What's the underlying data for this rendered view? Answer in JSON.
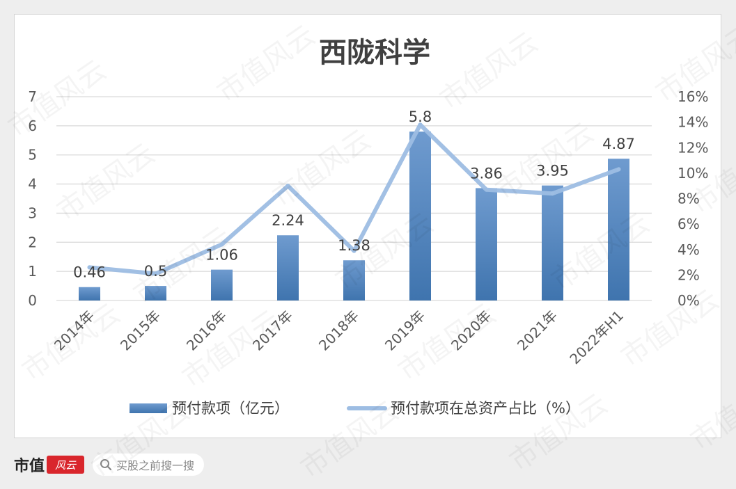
{
  "chart_data": {
    "type": "bar",
    "title": "西陇科学",
    "categories": [
      "2014年",
      "2015年",
      "2016年",
      "2017年",
      "2018年",
      "2019年",
      "2020年",
      "2021年",
      "2022年H1"
    ],
    "series": [
      {
        "name": "预付款项（亿元）",
        "type": "bar",
        "axis": "left",
        "values": [
          0.46,
          0.5,
          1.06,
          2.24,
          1.38,
          5.8,
          3.86,
          3.95,
          4.87
        ],
        "labels": [
          "0.46",
          "0.5",
          "1.06",
          "2.24",
          "1.38",
          "5.8",
          "3.86",
          "3.95",
          "4.87"
        ]
      },
      {
        "name": "预付款项在总资产占比（%）",
        "type": "line",
        "axis": "right",
        "values": [
          2.6,
          2.1,
          4.4,
          9.0,
          3.9,
          13.8,
          8.7,
          8.4,
          10.3
        ]
      }
    ],
    "ylim_left": [
      0,
      7
    ],
    "yticks_left": [
      "0",
      "1",
      "2",
      "3",
      "4",
      "5",
      "6",
      "7"
    ],
    "ylim_right": [
      0,
      16
    ],
    "yticks_right": [
      "0%",
      "2%",
      "4%",
      "6%",
      "8%",
      "10%",
      "12%",
      "14%",
      "16%"
    ],
    "grid": true,
    "legend_position": "bottom",
    "colors": {
      "bar": "#4a7fb8",
      "bar_light": "#6f9bcf",
      "line": "#9dbde3",
      "grid": "#d9d9d9",
      "text": "#595959",
      "title": "#404040"
    }
  },
  "footer": {
    "brand": "市值",
    "brand_mark": "风云",
    "search_text": "买股之前搜一搜",
    "search_icon": "search-icon"
  },
  "watermark_text": "市值风云"
}
